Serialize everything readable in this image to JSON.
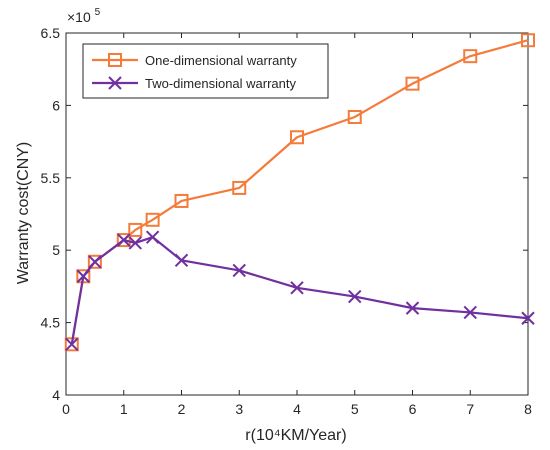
{
  "chart_data": {
    "type": "line",
    "title": "",
    "xlabel": "r(10⁴KM/Year)",
    "ylabel": "Warranty cost(CNY)",
    "x": [
      0.1,
      0.3,
      0.5,
      1,
      1.2,
      1.5,
      2,
      3,
      4,
      5,
      6,
      7,
      8
    ],
    "xlim": [
      0,
      8
    ],
    "ylim": [
      4,
      6.5
    ],
    "y_scale_factor": {
      "base": "×10",
      "exponent": "5"
    },
    "xticks": [
      "0",
      "1",
      "2",
      "3",
      "4",
      "5",
      "6",
      "7",
      "8"
    ],
    "yticks": [
      "4",
      "4.5",
      "5",
      "5.5",
      "6",
      "6.5"
    ],
    "grid": false,
    "legend_position": "top-left",
    "series": [
      {
        "name": "One-dimensional warranty",
        "color": "#F47B3A",
        "marker": "square",
        "values": [
          4.35,
          4.82,
          4.92,
          5.07,
          5.14,
          5.21,
          5.34,
          5.43,
          5.78,
          5.92,
          6.15,
          6.34,
          6.45
        ]
      },
      {
        "name": "Two-dimensional warranty",
        "color": "#7030A0",
        "marker": "x",
        "values": [
          4.35,
          4.82,
          4.92,
          5.07,
          5.05,
          5.09,
          4.93,
          4.86,
          4.74,
          4.68,
          4.6,
          4.57,
          4.53
        ]
      }
    ]
  }
}
